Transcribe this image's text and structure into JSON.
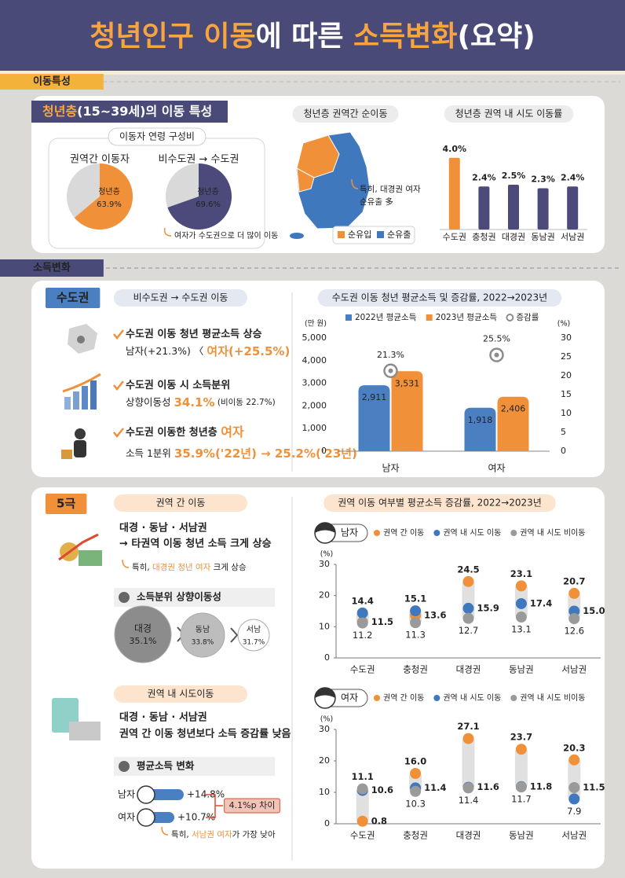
{
  "header": {
    "title": [
      "청년인구 이동",
      "에 따른 ",
      "소득변화",
      "(요약)"
    ]
  },
  "traits": {
    "tab": "이동특성",
    "heading": [
      "청년층",
      "(15~39세)의 이동 특성"
    ],
    "age_box": {
      "title": "이동자 연령 구성비",
      "note": "여자가 수도권으로 더 많이 이동"
    },
    "map": {
      "title": "청년층 권역간 순이동",
      "note": [
        "특히, 대경권 여자",
        "순유출 多"
      ],
      "legend": [
        "순유입",
        "순유출"
      ]
    }
  },
  "income": {
    "tab": "소득변화",
    "capital": {
      "tag": "수도권",
      "subtitle": "비수도권 → 수도권 이동",
      "items": [
        {
          "title": [
            "수도권 이동 청년 평균소득 상승"
          ],
          "detail": [
            "남자(+21.3%) 〈 ",
            "여자(+25.5%)"
          ]
        },
        {
          "title": [
            "수도권 이동 시 소득분위"
          ],
          "detail": [
            "상향이동성 ",
            "34.1%",
            " (비이동 22.7%)"
          ]
        },
        {
          "title": [
            "수도권 이동한 청년층 ",
            "여자"
          ],
          "detail": [
            "소득 1분위 ",
            "35.9%('22년) → 25.2%('23년)"
          ]
        }
      ]
    },
    "five": {
      "tag": "5극",
      "between": {
        "subtitle": "권역 간 이동",
        "lines": [
          "대경 · 동남 · 서남권",
          "→ 타권역 이동 청년 소득 크게 상승"
        ],
        "note": [
          "특히, ",
          "대경권 청년 여자",
          " 크게 상승"
        ],
        "mobility": {
          "title": "소득분위 상향이동성",
          "items": [
            {
              "name": "대경",
              "value": "35.1%"
            },
            {
              "name": "동남",
              "value": "33.8%"
            },
            {
              "name": "서남",
              "value": "31.7%"
            }
          ]
        }
      },
      "within": {
        "subtitle": "권역 내 시도이동",
        "lines": [
          "대경 · 동남 · 서남권",
          "권역 간 이동 청년보다 소득 증감률 낮음"
        ],
        "change": {
          "title": "평균소득 변화",
          "rows": [
            {
              "name": "남자",
              "value": "+14.8%"
            },
            {
              "name": "여자",
              "value": "+10.7%"
            }
          ],
          "diff": "4.1%p 차이"
        },
        "note": [
          "특히, ",
          "서남권 여자",
          "가 가장 낮아"
        ]
      }
    }
  },
  "chart_data": [
    {
      "type": "pie",
      "title": "권역간 이동자",
      "categories": [
        "청년층"
      ],
      "values": [
        63.9
      ],
      "value_labels": [
        "63.9%"
      ],
      "color": "#f0913a"
    },
    {
      "type": "pie",
      "title": "비수도권 → 수도권",
      "categories": [
        "청년층"
      ],
      "values": [
        69.6
      ],
      "value_labels": [
        "69.6%"
      ],
      "color": "#4b4a7a"
    },
    {
      "type": "bar",
      "title": "청년층 권역 내 시도 이동률",
      "categories": [
        "수도권",
        "충청권",
        "대경권",
        "동남권",
        "서남권"
      ],
      "values": [
        4.0,
        2.4,
        2.5,
        2.3,
        2.4
      ],
      "value_labels": [
        "4.0%",
        "2.4%",
        "2.5%",
        "2.3%",
        "2.4%"
      ],
      "colors": [
        "#f0913a",
        "#4b4a7a",
        "#4b4a7a",
        "#4b4a7a",
        "#4b4a7a"
      ],
      "ylim": [
        0,
        5
      ]
    },
    {
      "type": "bar",
      "title": "수도권 이동 청년 평균소득 및 증감률, 2022→2023년",
      "categories": [
        "남자",
        "여자"
      ],
      "series": [
        {
          "name": "2022년 평균소득",
          "color": "#4a80c2",
          "values": [
            2911,
            1918
          ],
          "value_labels": [
            "2,911",
            "1,918"
          ]
        },
        {
          "name": "2023년 평균소득",
          "color": "#f0913a",
          "values": [
            3531,
            2406
          ],
          "value_labels": [
            "3,531",
            "2,406"
          ]
        },
        {
          "name": "증감률",
          "color": "#8c8c8c",
          "axis": "y2",
          "values": [
            21.3,
            25.5
          ],
          "value_labels": [
            "21.3%",
            "25.5%"
          ]
        }
      ],
      "ylabel": "(만 원)",
      "y2label": "(%)",
      "ylim": [
        0,
        5000
      ],
      "yticks": [
        0,
        {
          "value": 1000,
          "label": "1,000"
        },
        {
          "value": 2000,
          "label": "2,000"
        },
        {
          "value": 3000,
          "label": "3,000"
        },
        {
          "value": 4000,
          "label": "4,000"
        },
        {
          "value": 5000,
          "label": "5,000"
        }
      ],
      "y2lim": [
        0,
        30
      ],
      "y2ticks": [
        0,
        5,
        10,
        15,
        20,
        25,
        30
      ]
    },
    {
      "type": "dot",
      "title": "권역 이동 여부별 평균소득 증감률, 2022→2023년",
      "label": "남자",
      "categories": [
        "수도권",
        "충청권",
        "대경권",
        "동남권",
        "서남권"
      ],
      "series": [
        {
          "name": "권역 간 이동",
          "color": "#f0913a",
          "values": [
            11.5,
            13.6,
            24.5,
            23.1,
            20.7
          ],
          "value_labels": [
            "11.5",
            "13.6",
            "24.5",
            "23.1",
            "20.7"
          ]
        },
        {
          "name": "권역 내 시도 이동",
          "color": "#3f78bd",
          "values": [
            14.4,
            15.1,
            15.9,
            17.4,
            15.0
          ],
          "value_labels": [
            "14.4",
            "15.1",
            "15.9",
            "17.4",
            "15.0"
          ]
        },
        {
          "name": "권역 내 시도 비이동",
          "color": "#9a9a9a",
          "values": [
            11.2,
            11.3,
            12.7,
            13.1,
            12.6
          ],
          "value_labels": [
            "11.2",
            "11.3",
            "12.7",
            "13.1",
            "12.6"
          ]
        }
      ],
      "ylabel": "(%)",
      "ylim": [
        0,
        30
      ],
      "yticks": [
        0,
        10,
        20,
        30
      ]
    },
    {
      "type": "dot",
      "label": "여자",
      "categories": [
        "수도권",
        "충청권",
        "대경권",
        "동남권",
        "서남권"
      ],
      "series": [
        {
          "name": "권역 간 이동",
          "color": "#f0913a",
          "values": [
            0.8,
            16.0,
            27.1,
            23.7,
            20.3
          ],
          "value_labels": [
            "0.8",
            "16.0",
            "27.1",
            "23.7",
            "20.3"
          ]
        },
        {
          "name": "권역 내 시도 이동",
          "color": "#3f78bd",
          "values": [
            10.6,
            11.4,
            11.6,
            11.8,
            7.9
          ],
          "value_labels": [
            "10.6",
            "11.4",
            "11.6",
            "11.8",
            "7.9"
          ]
        },
        {
          "name": "권역 내 시도 비이동",
          "color": "#9a9a9a",
          "values": [
            11.1,
            10.3,
            11.4,
            11.7,
            11.5
          ],
          "value_labels": [
            "11.1",
            "10.3",
            "11.4",
            "11.7",
            "11.5"
          ]
        }
      ],
      "ylabel": "(%)",
      "ylim": [
        0,
        30
      ],
      "yticks": [
        0,
        10,
        20,
        30
      ]
    }
  ]
}
